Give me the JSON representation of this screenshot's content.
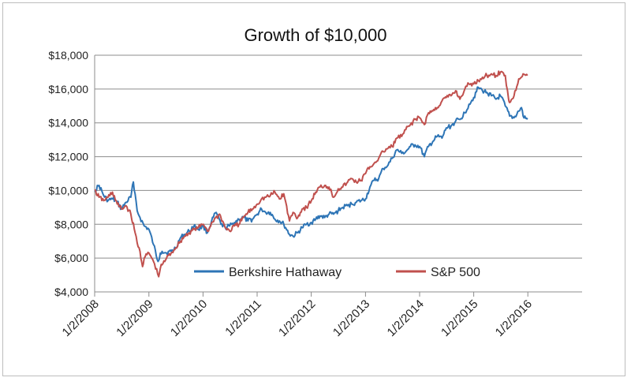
{
  "chart_data": {
    "type": "line",
    "title": "Growth of $10,000",
    "xlabel": "",
    "ylabel": "",
    "x_ticks": [
      "1/2/2008",
      "1/2/2009",
      "1/2/2010",
      "1/2/2011",
      "1/2/2012",
      "1/2/2013",
      "1/2/2014",
      "1/2/2015",
      "1/2/2016"
    ],
    "y_ticks": [
      "$4,000",
      "$6,000",
      "$8,000",
      "$10,000",
      "$12,000",
      "$14,000",
      "$16,000",
      "$18,000"
    ],
    "ylim": [
      4000,
      18000
    ],
    "xlim": [
      "2008-01-02",
      "2017-01-02"
    ],
    "grid": true,
    "legend_position": "bottom-center inside plot",
    "series": [
      {
        "name": "Berkshire Hathaway",
        "color": "#2E75B6",
        "points": [
          [
            "2008-01-02",
            10000
          ],
          [
            "2008-02-01",
            10300
          ],
          [
            "2008-03-03",
            9700
          ],
          [
            "2008-04-01",
            9400
          ],
          [
            "2008-05-01",
            9500
          ],
          [
            "2008-06-02",
            9300
          ],
          [
            "2008-07-01",
            8900
          ],
          [
            "2008-08-01",
            9300
          ],
          [
            "2008-09-02",
            9600
          ],
          [
            "2008-09-19",
            10500
          ],
          [
            "2008-10-01",
            9800
          ],
          [
            "2008-10-15",
            8800
          ],
          [
            "2008-11-03",
            8400
          ],
          [
            "2008-12-01",
            7900
          ],
          [
            "2009-01-02",
            7700
          ],
          [
            "2009-02-02",
            6800
          ],
          [
            "2009-03-05",
            5800
          ],
          [
            "2009-03-20",
            6300
          ],
          [
            "2009-04-01",
            6400
          ],
          [
            "2009-05-01",
            6300
          ],
          [
            "2009-06-01",
            6400
          ],
          [
            "2009-07-01",
            6600
          ],
          [
            "2009-08-03",
            7200
          ],
          [
            "2009-09-01",
            7400
          ],
          [
            "2009-10-01",
            7600
          ],
          [
            "2009-11-02",
            7900
          ],
          [
            "2009-12-01",
            7700
          ],
          [
            "2010-01-04",
            7900
          ],
          [
            "2010-02-01",
            7500
          ],
          [
            "2010-03-01",
            8200
          ],
          [
            "2010-04-01",
            8700
          ],
          [
            "2010-05-03",
            8000
          ],
          [
            "2010-06-01",
            7800
          ],
          [
            "2010-07-01",
            7900
          ],
          [
            "2010-08-02",
            8100
          ],
          [
            "2010-09-01",
            8300
          ],
          [
            "2010-10-01",
            8400
          ],
          [
            "2010-11-01",
            8200
          ],
          [
            "2010-12-01",
            8300
          ],
          [
            "2011-01-03",
            8600
          ],
          [
            "2011-02-01",
            8900
          ],
          [
            "2011-03-01",
            8700
          ],
          [
            "2011-04-01",
            8700
          ],
          [
            "2011-05-02",
            8300
          ],
          [
            "2011-06-01",
            8200
          ],
          [
            "2011-07-01",
            8000
          ],
          [
            "2011-08-08",
            7400
          ],
          [
            "2011-09-01",
            7300
          ],
          [
            "2011-10-03",
            7500
          ],
          [
            "2011-11-01",
            7800
          ],
          [
            "2011-12-01",
            8000
          ],
          [
            "2012-01-03",
            8100
          ],
          [
            "2012-02-01",
            8300
          ],
          [
            "2012-03-01",
            8500
          ],
          [
            "2012-04-02",
            8400
          ],
          [
            "2012-05-01",
            8600
          ],
          [
            "2012-06-01",
            8600
          ],
          [
            "2012-07-02",
            8800
          ],
          [
            "2012-08-01",
            9000
          ],
          [
            "2012-09-04",
            9100
          ],
          [
            "2012-10-01",
            9200
          ],
          [
            "2012-11-01",
            9300
          ],
          [
            "2012-12-03",
            9400
          ],
          [
            "2013-01-02",
            9500
          ],
          [
            "2013-02-01",
            10200
          ],
          [
            "2013-03-01",
            10600
          ],
          [
            "2013-04-01",
            10700
          ],
          [
            "2013-05-01",
            11300
          ],
          [
            "2013-06-03",
            11500
          ],
          [
            "2013-07-01",
            11900
          ],
          [
            "2013-08-01",
            12400
          ],
          [
            "2013-09-03",
            12200
          ],
          [
            "2013-10-01",
            12300
          ],
          [
            "2013-11-01",
            12600
          ],
          [
            "2013-12-02",
            12700
          ],
          [
            "2014-01-02",
            12600
          ],
          [
            "2014-02-03",
            12000
          ],
          [
            "2014-03-03",
            12600
          ],
          [
            "2014-04-01",
            12900
          ],
          [
            "2014-05-01",
            13200
          ],
          [
            "2014-06-02",
            13100
          ],
          [
            "2014-07-01",
            13700
          ],
          [
            "2014-08-01",
            13800
          ],
          [
            "2014-09-02",
            14100
          ],
          [
            "2014-10-01",
            14200
          ],
          [
            "2014-11-03",
            14600
          ],
          [
            "2014-12-01",
            15100
          ],
          [
            "2015-01-02",
            15500
          ],
          [
            "2015-02-02",
            16100
          ],
          [
            "2015-03-02",
            15900
          ],
          [
            "2015-04-01",
            15800
          ],
          [
            "2015-05-01",
            15600
          ],
          [
            "2015-06-01",
            15400
          ],
          [
            "2015-07-01",
            15600
          ],
          [
            "2015-08-03",
            15000
          ],
          [
            "2015-09-01",
            14400
          ],
          [
            "2015-10-01",
            14300
          ],
          [
            "2015-11-02",
            14700
          ],
          [
            "2015-11-20",
            14900
          ],
          [
            "2015-12-01",
            14400
          ],
          [
            "2015-12-31",
            14200
          ]
        ]
      },
      {
        "name": "S&P 500",
        "color": "#C0504D",
        "points": [
          [
            "2008-01-02",
            10000
          ],
          [
            "2008-02-01",
            9600
          ],
          [
            "2008-03-03",
            9400
          ],
          [
            "2008-04-01",
            9600
          ],
          [
            "2008-05-01",
            9900
          ],
          [
            "2008-06-02",
            9200
          ],
          [
            "2008-07-01",
            8900
          ],
          [
            "2008-08-01",
            9100
          ],
          [
            "2008-09-02",
            8600
          ],
          [
            "2008-10-01",
            7500
          ],
          [
            "2008-10-15",
            6900
          ],
          [
            "2008-11-03",
            6400
          ],
          [
            "2008-11-20",
            5500
          ],
          [
            "2008-12-01",
            6000
          ],
          [
            "2009-01-02",
            6300
          ],
          [
            "2009-02-02",
            5800
          ],
          [
            "2009-03-09",
            4900
          ],
          [
            "2009-03-20",
            5400
          ],
          [
            "2009-04-01",
            5600
          ],
          [
            "2009-05-01",
            6000
          ],
          [
            "2009-06-01",
            6300
          ],
          [
            "2009-07-01",
            6600
          ],
          [
            "2009-08-03",
            7000
          ],
          [
            "2009-09-01",
            7300
          ],
          [
            "2009-10-01",
            7500
          ],
          [
            "2009-11-02",
            7700
          ],
          [
            "2009-12-01",
            7800
          ],
          [
            "2010-01-04",
            8000
          ],
          [
            "2010-02-08",
            7600
          ],
          [
            "2010-03-01",
            8100
          ],
          [
            "2010-04-23",
            8600
          ],
          [
            "2010-05-03",
            8400
          ],
          [
            "2010-06-01",
            7800
          ],
          [
            "2010-07-01",
            7600
          ],
          [
            "2010-08-02",
            7900
          ],
          [
            "2010-09-01",
            8000
          ],
          [
            "2010-10-01",
            8400
          ],
          [
            "2010-11-01",
            8700
          ],
          [
            "2010-12-01",
            8900
          ],
          [
            "2011-01-03",
            9200
          ],
          [
            "2011-02-01",
            9500
          ],
          [
            "2011-03-01",
            9600
          ],
          [
            "2011-04-01",
            9700
          ],
          [
            "2011-05-02",
            9900
          ],
          [
            "2011-06-01",
            9500
          ],
          [
            "2011-07-01",
            9800
          ],
          [
            "2011-08-08",
            8200
          ],
          [
            "2011-09-01",
            8700
          ],
          [
            "2011-10-03",
            8400
          ],
          [
            "2011-11-01",
            8900
          ],
          [
            "2011-12-01",
            9000
          ],
          [
            "2012-01-03",
            9400
          ],
          [
            "2012-02-01",
            9900
          ],
          [
            "2012-03-01",
            10200
          ],
          [
            "2012-04-02",
            10300
          ],
          [
            "2012-05-01",
            10200
          ],
          [
            "2012-06-01",
            9600
          ],
          [
            "2012-07-02",
            10100
          ],
          [
            "2012-08-01",
            10200
          ],
          [
            "2012-09-04",
            10500
          ],
          [
            "2012-10-01",
            10700
          ],
          [
            "2012-11-01",
            10500
          ],
          [
            "2012-12-03",
            10600
          ],
          [
            "2013-01-02",
            11000
          ],
          [
            "2013-02-01",
            11400
          ],
          [
            "2013-03-01",
            11600
          ],
          [
            "2013-04-01",
            11900
          ],
          [
            "2013-05-01",
            12300
          ],
          [
            "2013-06-03",
            12500
          ],
          [
            "2013-07-01",
            12600
          ],
          [
            "2013-08-01",
            13100
          ],
          [
            "2013-09-03",
            13200
          ],
          [
            "2013-10-01",
            13600
          ],
          [
            "2013-11-01",
            13900
          ],
          [
            "2013-12-02",
            14200
          ],
          [
            "2014-01-02",
            14300
          ],
          [
            "2014-02-03",
            13900
          ],
          [
            "2014-03-03",
            14600
          ],
          [
            "2014-04-01",
            14700
          ],
          [
            "2014-05-01",
            14900
          ],
          [
            "2014-06-02",
            15300
          ],
          [
            "2014-07-01",
            15500
          ],
          [
            "2014-08-01",
            15600
          ],
          [
            "2014-09-02",
            15900
          ],
          [
            "2014-10-01",
            15400
          ],
          [
            "2014-11-03",
            16000
          ],
          [
            "2014-12-01",
            16300
          ],
          [
            "2015-01-02",
            16300
          ],
          [
            "2015-02-02",
            16500
          ],
          [
            "2015-03-02",
            16700
          ],
          [
            "2015-04-01",
            16800
          ],
          [
            "2015-05-01",
            16900
          ],
          [
            "2015-06-01",
            16800
          ],
          [
            "2015-07-01",
            17000
          ],
          [
            "2015-08-03",
            16800
          ],
          [
            "2015-08-25",
            15400
          ],
          [
            "2015-09-01",
            15200
          ],
          [
            "2015-10-01",
            15600
          ],
          [
            "2015-11-02",
            16600
          ],
          [
            "2015-12-01",
            16900
          ],
          [
            "2015-12-31",
            16800
          ]
        ]
      }
    ]
  }
}
